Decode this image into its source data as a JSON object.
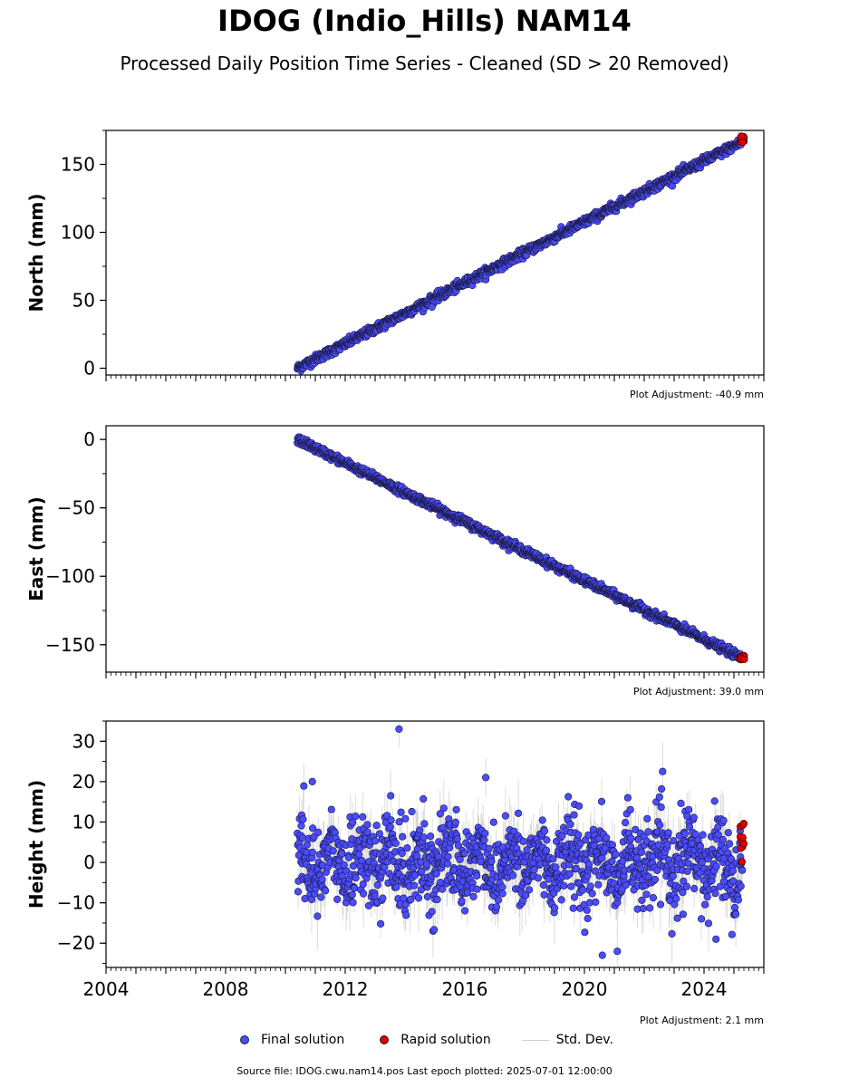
{
  "title": "IDOG (Indio_Hills) NAM14",
  "subtitle": "Processed Daily Position Time Series - Cleaned (SD > 20 Removed)",
  "legend": {
    "final": "Final solution",
    "rapid": "Rapid solution",
    "std": "Std. Dev."
  },
  "source": "Source file: IDOG.cwu.nam14.pos  Last epoch plotted: 2025-07-01 12:00:00",
  "colors": {
    "final": "#4b4bff",
    "rapid": "#e00000",
    "std": "#9a9a9a",
    "edge": "#1a1a40"
  },
  "chart_data": [
    {
      "type": "scatter",
      "name": "north",
      "ylabel": "North (mm)",
      "xlim": [
        2004,
        2026
      ],
      "ylim": [
        -5,
        175
      ],
      "yticks": [
        0,
        50,
        100,
        150
      ],
      "ytick_labels": [
        "0",
        "50",
        "100",
        "150"
      ],
      "annotation": "Plot Adjustment: -40.9 mm",
      "trend": {
        "start_year": 2010.4,
        "start_value": 0,
        "end_year": 2025.3,
        "end_value": 167
      },
      "noise_mm": 1.6,
      "outliers": [
        [
          2014.9,
          45
        ]
      ],
      "rapid": {
        "year_range": [
          2025.2,
          2025.35
        ],
        "value_range": [
          166,
          171
        ]
      }
    },
    {
      "type": "scatter",
      "name": "east",
      "ylabel": "East (mm)",
      "xlim": [
        2004,
        2026
      ],
      "ylim": [
        -170,
        10
      ],
      "yticks": [
        0,
        -50,
        -100,
        -150
      ],
      "ytick_labels": [
        "0",
        "−50",
        "−100",
        "−150"
      ],
      "annotation": "Plot Adjustment: 39.0 mm",
      "trend": {
        "start_year": 2010.4,
        "start_value": 0,
        "end_year": 2025.3,
        "end_value": -160
      },
      "noise_mm": 1.4,
      "outliers": [],
      "rapid": {
        "year_range": [
          2025.2,
          2025.35
        ],
        "value_range": [
          -161,
          -158
        ]
      }
    },
    {
      "type": "scatter",
      "name": "height",
      "ylabel": "Height (mm)",
      "xlim": [
        2004,
        2026
      ],
      "ylim": [
        -26,
        35
      ],
      "yticks": [
        -20,
        -10,
        0,
        10,
        20,
        30
      ],
      "ytick_labels": [
        "−20",
        "−10",
        "0",
        "10",
        "20",
        "30"
      ],
      "xticks": [
        2004,
        2008,
        2012,
        2016,
        2020,
        2024
      ],
      "xtick_labels": [
        "2004",
        "2008",
        "2012",
        "2016",
        "2020",
        "2024"
      ],
      "annotation": "Plot Adjustment: 2.1 mm",
      "trend": {
        "start_year": 2010.4,
        "start_value": 0,
        "end_year": 2025.3,
        "end_value": 0
      },
      "seasonal_amp_mm": 3.5,
      "noise_mm": 5.2,
      "outliers": [
        [
          2013.8,
          33
        ],
        [
          2010.9,
          20
        ],
        [
          2016.7,
          21
        ],
        [
          2020.6,
          -23
        ],
        [
          2021.1,
          -22
        ],
        [
          2024.4,
          -19
        ]
      ],
      "rapid": {
        "year_range": [
          2025.2,
          2025.35
        ],
        "value_range": [
          0,
          11
        ]
      }
    }
  ]
}
